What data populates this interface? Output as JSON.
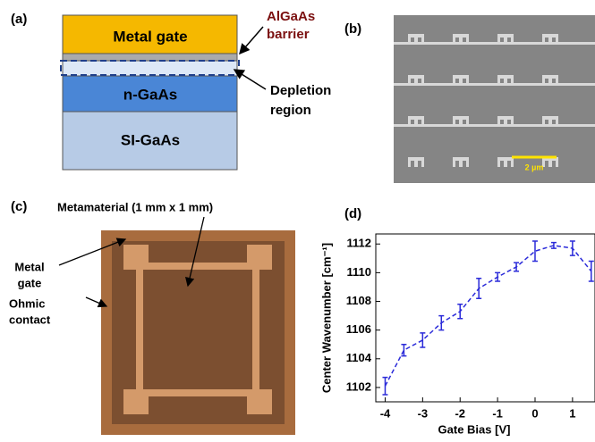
{
  "panel_a": {
    "label": "(a)",
    "layers": [
      "Metal gate",
      "n-GaAs",
      "SI-GaAs"
    ],
    "barrier": [
      "AlGaAs",
      "barrier"
    ],
    "depletion": [
      "Depletion",
      "region"
    ]
  },
  "panel_b": {
    "label": "(b)",
    "scale_bar": "2 µm"
  },
  "panel_c": {
    "label": "(c)",
    "title": "Metamaterial  (1 mm x 1 mm)",
    "gate": [
      "Metal",
      "gate"
    ],
    "contact": [
      "Ohmic",
      "contact"
    ]
  },
  "panel_d": {
    "label": "(d)"
  },
  "chart_data": {
    "type": "line",
    "xlabel": "Gate Bias [V]",
    "ylabel": "Center Wavenumber [cm⁻¹]",
    "x": [
      -4,
      -3.5,
      -3,
      -2.5,
      -2,
      -1.5,
      -1,
      -0.5,
      0,
      0.5,
      1,
      1.5
    ],
    "series": [
      {
        "color": "#2b2bd9",
        "values": [
          1102.1,
          1104.6,
          1105.3,
          1106.5,
          1107.3,
          1108.9,
          1109.7,
          1110.4,
          1111.5,
          1111.9,
          1111.7,
          1110.1
        ],
        "errors": [
          0.6,
          0.4,
          0.5,
          0.5,
          0.5,
          0.7,
          0.3,
          0.3,
          0.7,
          0.2,
          0.5,
          0.7
        ]
      }
    ],
    "xlim": [
      -4.25,
      1.6
    ],
    "ylim": [
      1101,
      1112.7
    ],
    "xticks": [
      -4,
      -3,
      -2,
      -1,
      0,
      1
    ],
    "yticks": [
      1102,
      1104,
      1106,
      1108,
      1110,
      1112
    ]
  }
}
